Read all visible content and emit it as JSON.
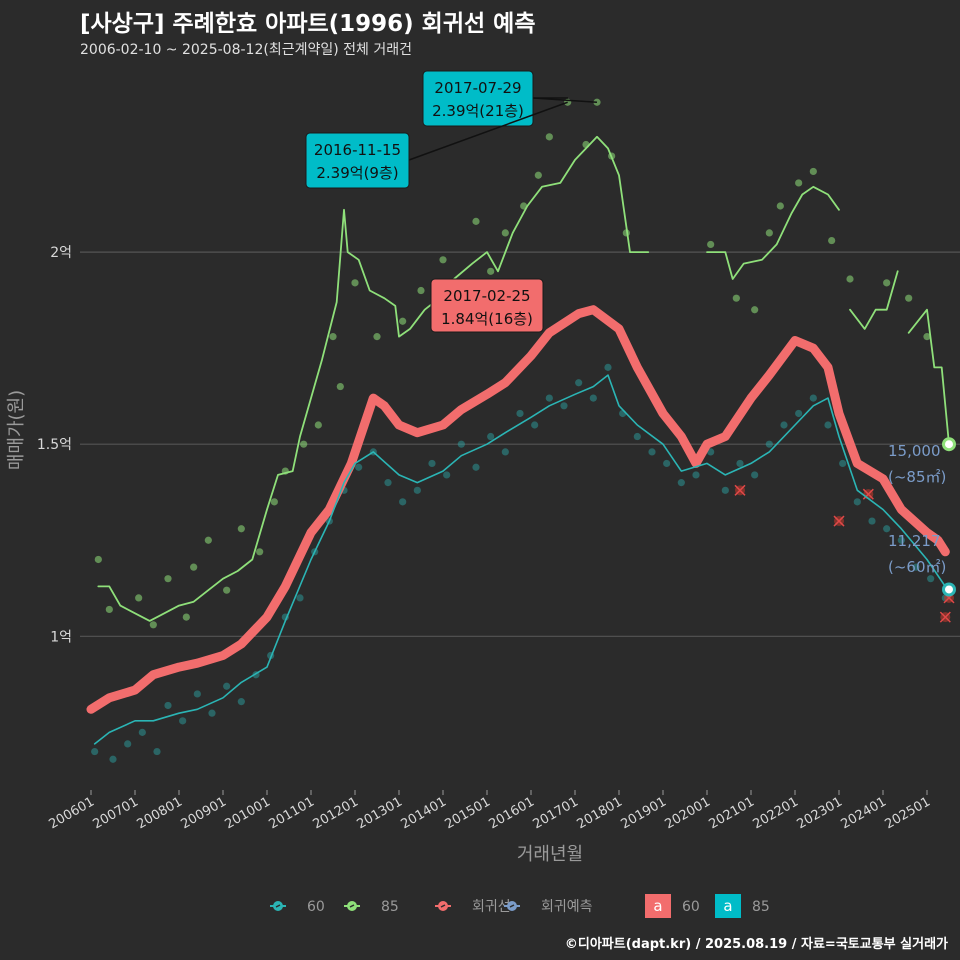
{
  "header": {
    "title": "[사상구] 주례한효 아파트(1996) 회귀선 예측",
    "subtitle": "2006-02-10 ~ 2025-08-12(최근계약일) 전체 거래건"
  },
  "caption": "©디아파트(dapt.kr) / 2025.08.19 / 자료=국토교통부 실거래가",
  "chart_data": {
    "type": "line",
    "xlabel": "거래년월",
    "ylabel": "매매가(원)",
    "ylim": [
      0.6,
      2.5
    ],
    "x_range": [
      "2005-10",
      "2025-10"
    ],
    "x_ticks": [
      "200601",
      "200701",
      "200801",
      "200901",
      "201001",
      "201101",
      "201201",
      "201301",
      "201401",
      "201501",
      "201601",
      "201701",
      "201801",
      "201901",
      "202001",
      "202101",
      "202201",
      "202301",
      "202401",
      "202501"
    ],
    "y_ticks": [
      {
        "value": 1.0,
        "label": "1억"
      },
      {
        "value": 1.5,
        "label": "1.5억"
      },
      {
        "value": 2.0,
        "label": "2억"
      }
    ],
    "grid": true,
    "legend_position": "bottom",
    "colors": {
      "s60": "#2bb5b5",
      "s85": "#8fe07a",
      "regression": "#f26d6d",
      "forecast": "#7b9cc9"
    },
    "legend": {
      "items": [
        {
          "key": "s60",
          "label": "60"
        },
        {
          "key": "s85",
          "label": "85"
        },
        {
          "key": "regression",
          "label": "회귀선"
        },
        {
          "key": "forecast",
          "label": "회귀예측"
        }
      ],
      "boxes": [
        {
          "glyph": "a",
          "label": "60",
          "color": "#f26d6d"
        },
        {
          "glyph": "a",
          "label": "85",
          "color": "#00bcc8"
        }
      ]
    },
    "series": [
      {
        "name": "85",
        "color": "#8fe07a",
        "segments": [
          [
            [
              "2006-03",
              1.13
            ],
            [
              "2006-06",
              1.13
            ],
            [
              "2006-09",
              1.08
            ],
            [
              "2007-01",
              1.06
            ],
            [
              "2007-05",
              1.04
            ],
            [
              "2007-09",
              1.06
            ],
            [
              "2008-01",
              1.08
            ],
            [
              "2008-05",
              1.09
            ],
            [
              "2008-09",
              1.12
            ],
            [
              "2009-01",
              1.15
            ],
            [
              "2009-05",
              1.17
            ],
            [
              "2009-09",
              1.2
            ],
            [
              "2010-01",
              1.33
            ],
            [
              "2010-04",
              1.42
            ],
            [
              "2010-08",
              1.43
            ],
            [
              "2010-10",
              1.52
            ],
            [
              "2011-01",
              1.62
            ],
            [
              "2011-04",
              1.72
            ],
            [
              "2011-08",
              1.87
            ],
            [
              "2011-10",
              2.11
            ],
            [
              "2011-11",
              2.0
            ],
            [
              "2012-02",
              1.98
            ],
            [
              "2012-05",
              1.9
            ],
            [
              "2012-09",
              1.88
            ],
            [
              "2012-12",
              1.86
            ],
            [
              "2013-01",
              1.78
            ],
            [
              "2013-04",
              1.8
            ],
            [
              "2013-08",
              1.85
            ],
            [
              "2013-12",
              1.88
            ],
            [
              "2014-04",
              1.93
            ],
            [
              "2014-09",
              1.97
            ],
            [
              "2015-01",
              2.0
            ],
            [
              "2015-04",
              1.95
            ],
            [
              "2015-08",
              2.05
            ],
            [
              "2015-12",
              2.12
            ],
            [
              "2016-04",
              2.17
            ],
            [
              "2016-09",
              2.18
            ],
            [
              "2017-01",
              2.24
            ],
            [
              "2017-04",
              2.27
            ],
            [
              "2017-07",
              2.3
            ],
            [
              "2017-10",
              2.27
            ],
            [
              "2018-01",
              2.2
            ],
            [
              "2018-04",
              2.0
            ],
            [
              "2018-09",
              2.0
            ]
          ],
          [
            [
              "2020-01",
              2.0
            ],
            [
              "2020-06",
              2.0
            ],
            [
              "2020-08",
              1.93
            ],
            [
              "2020-11",
              1.97
            ],
            [
              "2021-04",
              1.98
            ],
            [
              "2021-08",
              2.02
            ],
            [
              "2021-12",
              2.1
            ],
            [
              "2022-03",
              2.15
            ],
            [
              "2022-06",
              2.17
            ],
            [
              "2022-10",
              2.15
            ],
            [
              "2023-01",
              2.11
            ]
          ],
          [
            [
              "2023-04",
              1.85
            ],
            [
              "2023-08",
              1.8
            ],
            [
              "2023-11",
              1.85
            ],
            [
              "2024-02",
              1.85
            ],
            [
              "2024-05",
              1.95
            ]
          ],
          [
            [
              "2024-08",
              1.79
            ],
            [
              "2025-01",
              1.85
            ],
            [
              "2025-03",
              1.7
            ],
            [
              "2025-05",
              1.7
            ],
            [
              "2025-07",
              1.5
            ]
          ]
        ]
      },
      {
        "name": "60",
        "color": "#2bb5b5",
        "segments": [
          [
            [
              "2006-02",
              0.72
            ],
            [
              "2006-06",
              0.75
            ],
            [
              "2007-01",
              0.78
            ],
            [
              "2007-06",
              0.78
            ],
            [
              "2008-01",
              0.8
            ],
            [
              "2008-06",
              0.81
            ],
            [
              "2009-01",
              0.84
            ],
            [
              "2009-06",
              0.88
            ],
            [
              "2010-01",
              0.92
            ],
            [
              "2010-06",
              1.04
            ],
            [
              "2011-01",
              1.2
            ],
            [
              "2011-06",
              1.3
            ],
            [
              "2011-10",
              1.4
            ],
            [
              "2012-01",
              1.45
            ],
            [
              "2012-06",
              1.48
            ],
            [
              "2013-01",
              1.42
            ],
            [
              "2013-06",
              1.4
            ],
            [
              "2014-01",
              1.43
            ],
            [
              "2014-06",
              1.47
            ],
            [
              "2015-01",
              1.5
            ],
            [
              "2015-06",
              1.53
            ],
            [
              "2016-01",
              1.57
            ],
            [
              "2016-06",
              1.6
            ],
            [
              "2017-01",
              1.63
            ],
            [
              "2017-06",
              1.65
            ],
            [
              "2017-10",
              1.68
            ],
            [
              "2018-01",
              1.6
            ],
            [
              "2018-06",
              1.55
            ],
            [
              "2019-01",
              1.5
            ],
            [
              "2019-06",
              1.43
            ],
            [
              "2020-01",
              1.45
            ],
            [
              "2020-06",
              1.42
            ],
            [
              "2021-01",
              1.45
            ],
            [
              "2021-06",
              1.48
            ],
            [
              "2022-01",
              1.55
            ],
            [
              "2022-06",
              1.6
            ],
            [
              "2022-10",
              1.62
            ],
            [
              "2023-01",
              1.52
            ],
            [
              "2023-06",
              1.38
            ],
            [
              "2024-01",
              1.33
            ],
            [
              "2024-06",
              1.28
            ],
            [
              "2025-01",
              1.2
            ],
            [
              "2025-06",
              1.13
            ]
          ]
        ]
      },
      {
        "name": "회귀선",
        "color": "#f26d6d",
        "segments": [
          [
            [
              "2006-01",
              0.81
            ],
            [
              "2006-06",
              0.84
            ],
            [
              "2007-01",
              0.86
            ],
            [
              "2007-06",
              0.9
            ],
            [
              "2008-01",
              0.92
            ],
            [
              "2008-06",
              0.93
            ],
            [
              "2009-01",
              0.95
            ],
            [
              "2009-06",
              0.98
            ],
            [
              "2010-01",
              1.05
            ],
            [
              "2010-06",
              1.13
            ],
            [
              "2011-01",
              1.27
            ],
            [
              "2011-06",
              1.33
            ],
            [
              "2011-12",
              1.45
            ],
            [
              "2012-06",
              1.62
            ],
            [
              "2012-09",
              1.6
            ],
            [
              "2013-01",
              1.55
            ],
            [
              "2013-06",
              1.53
            ],
            [
              "2014-01",
              1.55
            ],
            [
              "2014-06",
              1.59
            ],
            [
              "2015-01",
              1.63
            ],
            [
              "2015-06",
              1.66
            ],
            [
              "2016-01",
              1.73
            ],
            [
              "2016-06",
              1.79
            ],
            [
              "2017-02",
              1.84
            ],
            [
              "2017-06",
              1.85
            ],
            [
              "2018-01",
              1.8
            ],
            [
              "2018-06",
              1.7
            ],
            [
              "2019-01",
              1.58
            ],
            [
              "2019-06",
              1.52
            ],
            [
              "2019-10",
              1.45
            ],
            [
              "2020-01",
              1.5
            ],
            [
              "2020-06",
              1.52
            ],
            [
              "2021-01",
              1.62
            ],
            [
              "2021-06",
              1.68
            ],
            [
              "2022-01",
              1.77
            ],
            [
              "2022-06",
              1.75
            ],
            [
              "2022-10",
              1.7
            ],
            [
              "2023-01",
              1.58
            ],
            [
              "2023-06",
              1.45
            ],
            [
              "2024-01",
              1.41
            ],
            [
              "2024-06",
              1.33
            ],
            [
              "2025-01",
              1.27
            ],
            [
              "2025-04",
              1.25
            ],
            [
              "2025-06",
              1.22
            ]
          ]
        ]
      }
    ],
    "scatter_85": [
      [
        "2006-03",
        1.2
      ],
      [
        "2006-06",
        1.07
      ],
      [
        "2007-02",
        1.1
      ],
      [
        "2007-06",
        1.03
      ],
      [
        "2007-10",
        1.15
      ],
      [
        "2008-03",
        1.05
      ],
      [
        "2008-05",
        1.18
      ],
      [
        "2008-09",
        1.25
      ],
      [
        "2009-02",
        1.12
      ],
      [
        "2009-06",
        1.28
      ],
      [
        "2009-11",
        1.22
      ],
      [
        "2010-03",
        1.35
      ],
      [
        "2010-06",
        1.43
      ],
      [
        "2010-11",
        1.5
      ],
      [
        "2011-03",
        1.55
      ],
      [
        "2011-07",
        1.78
      ],
      [
        "2011-09",
        1.65
      ],
      [
        "2012-01",
        1.92
      ],
      [
        "2012-07",
        1.78
      ],
      [
        "2013-02",
        1.82
      ],
      [
        "2013-07",
        1.9
      ],
      [
        "2014-01",
        1.98
      ],
      [
        "2014-05",
        1.88
      ],
      [
        "2014-10",
        2.08
      ],
      [
        "2015-02",
        1.95
      ],
      [
        "2015-06",
        2.05
      ],
      [
        "2015-11",
        2.12
      ],
      [
        "2016-03",
        2.2
      ],
      [
        "2016-06",
        2.3
      ],
      [
        "2016-11",
        2.39
      ],
      [
        "2017-04",
        2.28
      ],
      [
        "2017-07",
        2.39
      ],
      [
        "2017-11",
        2.25
      ],
      [
        "2018-03",
        2.05
      ],
      [
        "2020-02",
        2.02
      ],
      [
        "2020-09",
        1.88
      ],
      [
        "2021-02",
        1.85
      ],
      [
        "2021-06",
        2.05
      ],
      [
        "2021-09",
        2.12
      ],
      [
        "2022-02",
        2.18
      ],
      [
        "2022-06",
        2.21
      ],
      [
        "2022-11",
        2.03
      ],
      [
        "2023-04",
        1.93
      ],
      [
        "2024-02",
        1.92
      ],
      [
        "2024-08",
        1.88
      ],
      [
        "2025-01",
        1.78
      ],
      [
        "2025-07",
        1.5
      ]
    ],
    "scatter_60": [
      [
        "2006-02",
        0.7
      ],
      [
        "2006-07",
        0.68
      ],
      [
        "2006-11",
        0.72
      ],
      [
        "2007-03",
        0.75
      ],
      [
        "2007-07",
        0.7
      ],
      [
        "2007-10",
        0.82
      ],
      [
        "2008-02",
        0.78
      ],
      [
        "2008-06",
        0.85
      ],
      [
        "2008-10",
        0.8
      ],
      [
        "2009-02",
        0.87
      ],
      [
        "2009-06",
        0.83
      ],
      [
        "2009-10",
        0.9
      ],
      [
        "2010-02",
        0.95
      ],
      [
        "2010-06",
        1.05
      ],
      [
        "2010-10",
        1.1
      ],
      [
        "2011-02",
        1.22
      ],
      [
        "2011-06",
        1.3
      ],
      [
        "2011-10",
        1.38
      ],
      [
        "2012-02",
        1.44
      ],
      [
        "2012-06",
        1.48
      ],
      [
        "2012-10",
        1.4
      ],
      [
        "2013-02",
        1.35
      ],
      [
        "2013-06",
        1.38
      ],
      [
        "2013-10",
        1.45
      ],
      [
        "2014-02",
        1.42
      ],
      [
        "2014-06",
        1.5
      ],
      [
        "2014-10",
        1.44
      ],
      [
        "2015-02",
        1.52
      ],
      [
        "2015-06",
        1.48
      ],
      [
        "2015-10",
        1.58
      ],
      [
        "2016-02",
        1.55
      ],
      [
        "2016-06",
        1.62
      ],
      [
        "2016-10",
        1.6
      ],
      [
        "2017-02",
        1.66
      ],
      [
        "2017-06",
        1.62
      ],
      [
        "2017-10",
        1.7
      ],
      [
        "2018-02",
        1.58
      ],
      [
        "2018-06",
        1.52
      ],
      [
        "2018-10",
        1.48
      ],
      [
        "2019-02",
        1.45
      ],
      [
        "2019-06",
        1.4
      ],
      [
        "2019-10",
        1.42
      ],
      [
        "2020-02",
        1.48
      ],
      [
        "2020-06",
        1.38
      ],
      [
        "2020-10",
        1.45
      ],
      [
        "2021-02",
        1.42
      ],
      [
        "2021-06",
        1.5
      ],
      [
        "2021-10",
        1.55
      ],
      [
        "2022-02",
        1.58
      ],
      [
        "2022-06",
        1.62
      ],
      [
        "2022-10",
        1.55
      ],
      [
        "2023-02",
        1.45
      ],
      [
        "2023-06",
        1.35
      ],
      [
        "2023-10",
        1.3
      ],
      [
        "2024-02",
        1.28
      ],
      [
        "2024-06",
        1.25
      ],
      [
        "2024-10",
        1.18
      ],
      [
        "2025-02",
        1.15
      ],
      [
        "2025-06",
        1.1
      ]
    ],
    "outliers": [
      [
        "2020-10",
        1.38
      ],
      [
        "2023-01",
        1.3
      ],
      [
        "2023-09",
        1.37
      ],
      [
        "2025-06",
        1.05
      ],
      [
        "2025-07",
        1.1
      ]
    ],
    "annotations": [
      {
        "date": "2017-07-29",
        "price": "2.39억(21층)",
        "x": "2017-07",
        "y": 2.39,
        "color": "#00bcc8"
      },
      {
        "date": "2016-11-15",
        "price": "2.39억(9층)",
        "x": "2016-11",
        "y": 2.39,
        "color": "#00bcc8"
      },
      {
        "date": "2017-02-25",
        "price": "1.84억(16층)",
        "x": "2017-02",
        "y": 1.84,
        "color": "#f26d6d"
      }
    ],
    "end_labels": [
      {
        "value": "15,000",
        "unit": "(~85㎡)",
        "x": "2025-07",
        "y": 1.5,
        "color": "#8fe07a"
      },
      {
        "value": "11,217",
        "unit": "(~60㎡)",
        "x": "2025-07",
        "y": 1.122,
        "color": "#2bb5b5"
      }
    ]
  }
}
